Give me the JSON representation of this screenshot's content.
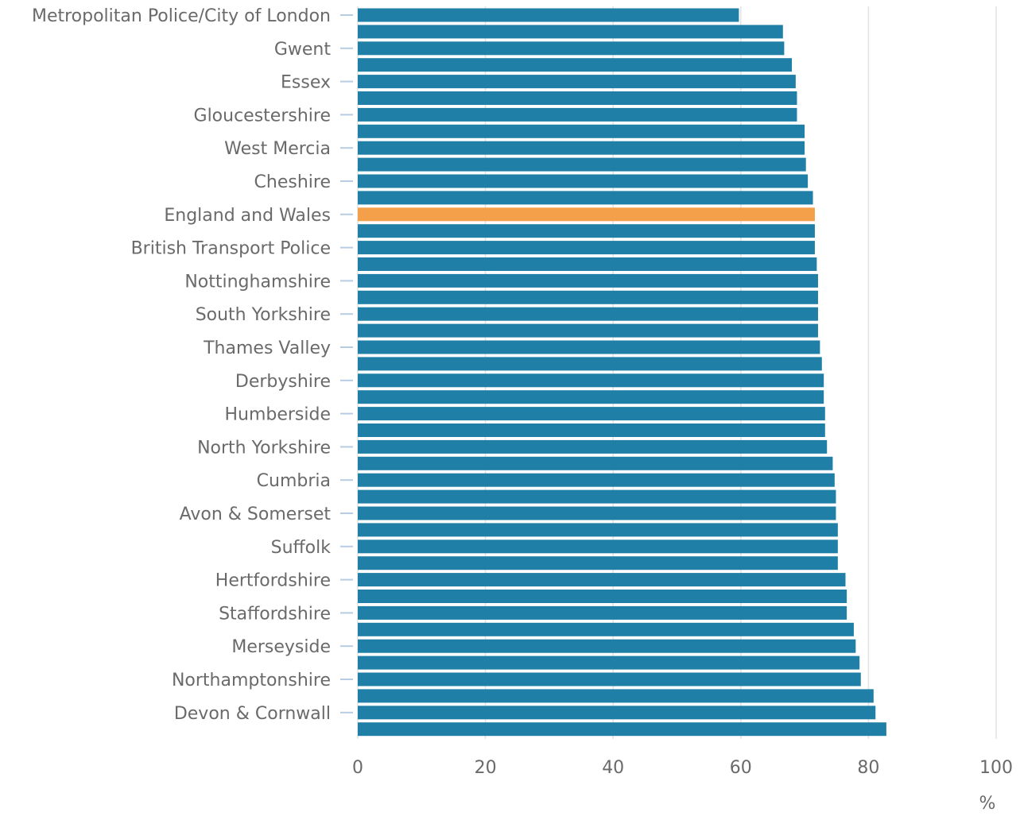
{
  "chart_data": {
    "type": "bar",
    "orientation": "horizontal",
    "categories": [
      "Metropolitan Police/City of London",
      "",
      "Gwent",
      "",
      "Essex",
      "",
      "Gloucestershire",
      "",
      "West Mercia",
      "",
      "Cheshire",
      "",
      "England and Wales",
      "",
      "British Transport Police",
      "",
      "Nottinghamshire",
      "",
      "South Yorkshire",
      "",
      "Thames Valley",
      "",
      "Derbyshire",
      "",
      "Humberside",
      "",
      "North Yorkshire",
      "",
      "Cumbria",
      "",
      "Avon & Somerset",
      "",
      "Suffolk",
      "",
      "Hertfordshire",
      "",
      "Staffordshire",
      "",
      "Merseyside",
      "",
      "Northamptonshire",
      "",
      "Devon & Cornwall",
      ""
    ],
    "values": [
      59.7,
      66.6,
      66.8,
      68.0,
      68.6,
      68.8,
      68.8,
      70.0,
      70.0,
      70.2,
      70.5,
      71.3,
      71.6,
      71.6,
      71.6,
      71.9,
      72.1,
      72.1,
      72.1,
      72.1,
      72.4,
      72.7,
      73.0,
      73.0,
      73.2,
      73.2,
      73.5,
      74.4,
      74.7,
      74.9,
      74.9,
      75.2,
      75.2,
      75.2,
      76.4,
      76.6,
      76.6,
      77.7,
      78.0,
      78.6,
      78.8,
      80.8,
      81.1,
      82.8
    ],
    "highlight_index": 12,
    "colors": {
      "bar": "#1F7FA6",
      "highlight": "#F4A04A",
      "grid": "#E1E3E6",
      "tick": "#B8CCE4",
      "text": "#6A6A6A"
    },
    "xlim": [
      0,
      100
    ],
    "x_ticks": [
      0,
      20,
      40,
      60,
      80,
      100
    ],
    "x_tick_labels": [
      "0",
      "20",
      "40",
      "60",
      "80",
      "100"
    ],
    "xlabel": "%",
    "ylabel": "",
    "title": "",
    "grid": true
  }
}
